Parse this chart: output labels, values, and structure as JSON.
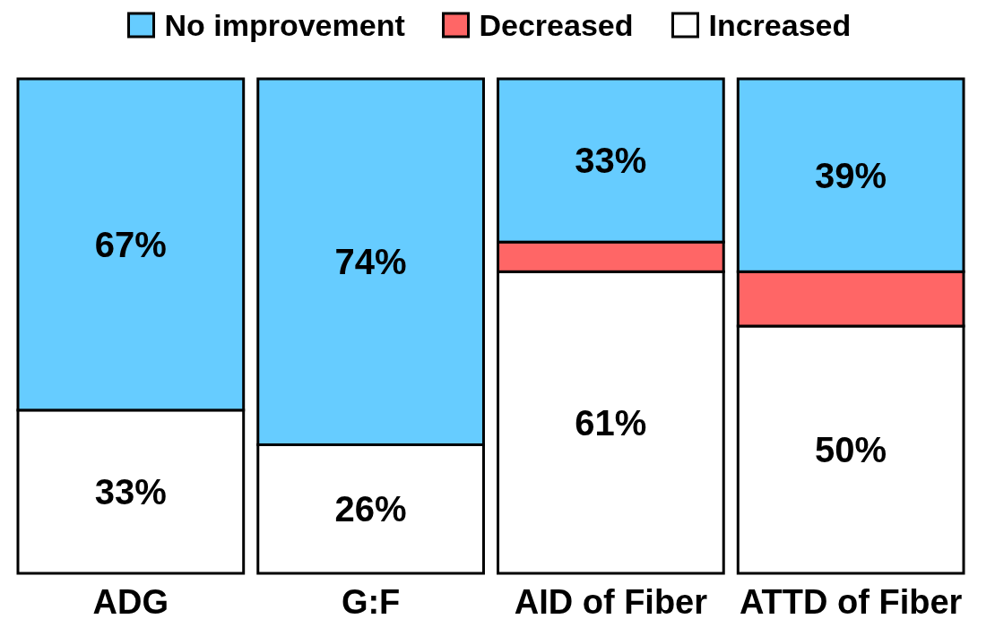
{
  "chart_data": {
    "type": "bar",
    "stacked": true,
    "categories": [
      "ADG",
      "G:F",
      "AID of Fiber",
      "ATTD of Fiber"
    ],
    "legend": "top",
    "series": [
      {
        "name": "Increased",
        "color": "#ffffff",
        "values": [
          33,
          26,
          61,
          50
        ],
        "value_labels": [
          "33%",
          "26%",
          "61%",
          "50%"
        ]
      },
      {
        "name": "Decreased",
        "color": "#ff6666",
        "values": [
          0,
          0,
          6,
          11
        ],
        "value_labels": [
          null,
          null,
          null,
          null
        ]
      },
      {
        "name": "No improvement",
        "color": "#66ccff",
        "values": [
          67,
          74,
          33,
          39
        ],
        "value_labels": [
          "67%",
          "74%",
          "33%",
          "39%"
        ]
      }
    ]
  }
}
